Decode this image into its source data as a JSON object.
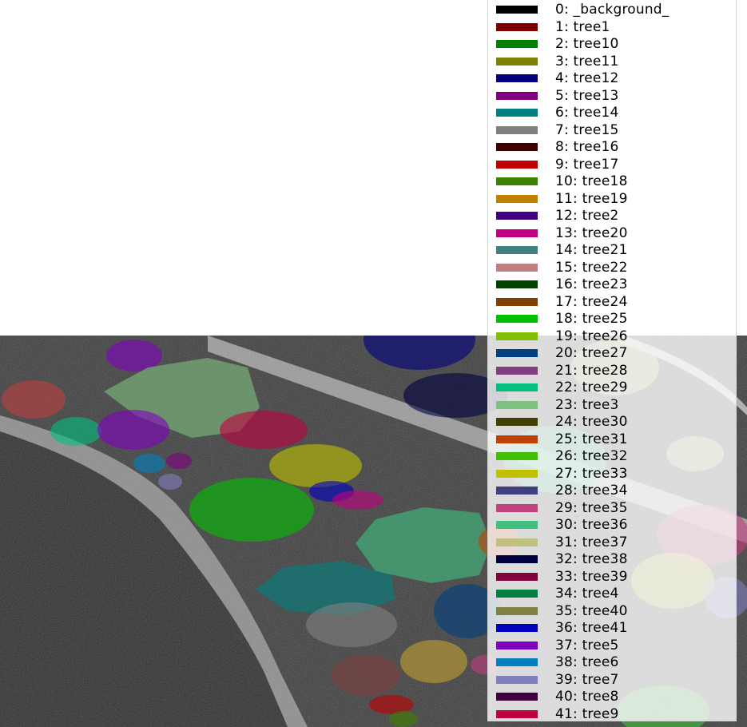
{
  "legend": {
    "items": [
      {
        "label": "0: _background_",
        "color": "#000000"
      },
      {
        "label": "1: tree1",
        "color": "#800000"
      },
      {
        "label": "2: tree10",
        "color": "#008000"
      },
      {
        "label": "3: tree11",
        "color": "#808000"
      },
      {
        "label": "4: tree12",
        "color": "#000080"
      },
      {
        "label": "5: tree13",
        "color": "#800080"
      },
      {
        "label": "6: tree14",
        "color": "#008080"
      },
      {
        "label": "7: tree15",
        "color": "#808080"
      },
      {
        "label": "8: tree16",
        "color": "#400000"
      },
      {
        "label": "9: tree17",
        "color": "#c00000"
      },
      {
        "label": "10: tree18",
        "color": "#408000"
      },
      {
        "label": "11: tree19",
        "color": "#c08000"
      },
      {
        "label": "12: tree2",
        "color": "#400080"
      },
      {
        "label": "13: tree20",
        "color": "#c00080"
      },
      {
        "label": "14: tree21",
        "color": "#408080"
      },
      {
        "label": "15: tree22",
        "color": "#c08080"
      },
      {
        "label": "16: tree23",
        "color": "#004000"
      },
      {
        "label": "17: tree24",
        "color": "#804000"
      },
      {
        "label": "18: tree25",
        "color": "#00c000"
      },
      {
        "label": "19: tree26",
        "color": "#80c000"
      },
      {
        "label": "20: tree27",
        "color": "#004080"
      },
      {
        "label": "21: tree28",
        "color": "#804080"
      },
      {
        "label": "22: tree29",
        "color": "#00c080"
      },
      {
        "label": "23: tree3",
        "color": "#80c080"
      },
      {
        "label": "24: tree30",
        "color": "#404000"
      },
      {
        "label": "25: tree31",
        "color": "#c04000"
      },
      {
        "label": "26: tree32",
        "color": "#40c000"
      },
      {
        "label": "27: tree33",
        "color": "#c0c000"
      },
      {
        "label": "28: tree34",
        "color": "#404080"
      },
      {
        "label": "29: tree35",
        "color": "#c04080"
      },
      {
        "label": "30: tree36",
        "color": "#40c080"
      },
      {
        "label": "31: tree37",
        "color": "#c0c080"
      },
      {
        "label": "32: tree38",
        "color": "#000040"
      },
      {
        "label": "33: tree39",
        "color": "#800040"
      },
      {
        "label": "34: tree4",
        "color": "#008040"
      },
      {
        "label": "35: tree40",
        "color": "#808040"
      },
      {
        "label": "36: tree41",
        "color": "#0000c0"
      },
      {
        "label": "37: tree5",
        "color": "#8000c0"
      },
      {
        "label": "38: tree6",
        "color": "#0080c0"
      },
      {
        "label": "39: tree7",
        "color": "#8080c0"
      },
      {
        "label": "40: tree8",
        "color": "#400040"
      },
      {
        "label": "41: tree9",
        "color": "#c00040"
      }
    ]
  }
}
